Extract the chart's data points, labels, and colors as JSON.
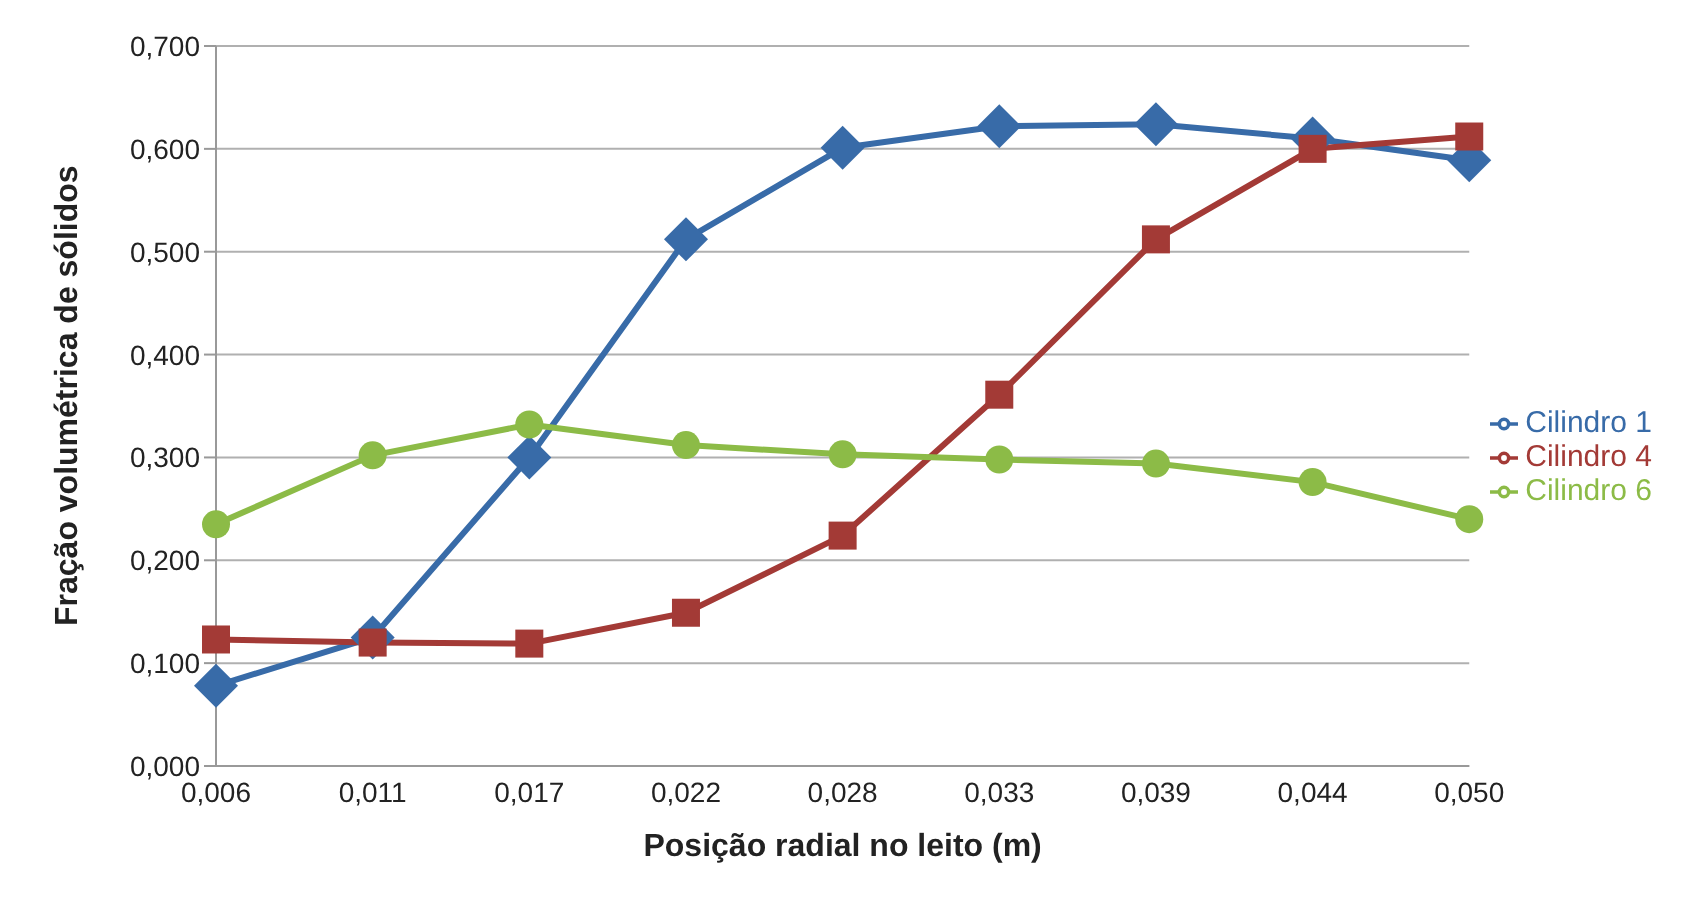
{
  "chart_data": {
    "type": "line",
    "xlabel": "Posição radial no leito (m)",
    "ylabel": "Fração volumétrica de sólidos",
    "categories": [
      "0,006",
      "0,011",
      "0,017",
      "0,022",
      "0,028",
      "0,033",
      "0,039",
      "0,044",
      "0,050"
    ],
    "ylim": [
      0,
      0.7
    ],
    "yticks": [
      {
        "value": 0,
        "label": "0,000"
      },
      {
        "value": 0.1,
        "label": "0,100"
      },
      {
        "value": 0.2,
        "label": "0,200"
      },
      {
        "value": 0.3,
        "label": "0,300"
      },
      {
        "value": 0.4,
        "label": "0,400"
      },
      {
        "value": 0.5,
        "label": "0,500"
      },
      {
        "value": 0.6,
        "label": "0,600"
      },
      {
        "value": 0.7,
        "label": "0,700"
      }
    ],
    "grid": "y",
    "legend": "right",
    "line_style": "solid",
    "series": [
      {
        "name": "Cilindro 1",
        "color": "#386ba8",
        "marker": "diamond",
        "values": [
          0.078,
          0.125,
          0.3,
          0.512,
          0.601,
          0.622,
          0.624,
          0.61,
          0.589
        ]
      },
      {
        "name": "Cilindro 4",
        "color": "#a33a36",
        "marker": "square",
        "values": [
          0.123,
          0.12,
          0.119,
          0.149,
          0.224,
          0.361,
          0.512,
          0.6,
          0.612
        ]
      },
      {
        "name": "Cilindro 6",
        "color": "#8cbb47",
        "marker": "circle",
        "values": [
          0.235,
          0.302,
          0.332,
          0.312,
          0.303,
          0.298,
          0.294,
          0.276,
          0.24
        ]
      }
    ]
  }
}
